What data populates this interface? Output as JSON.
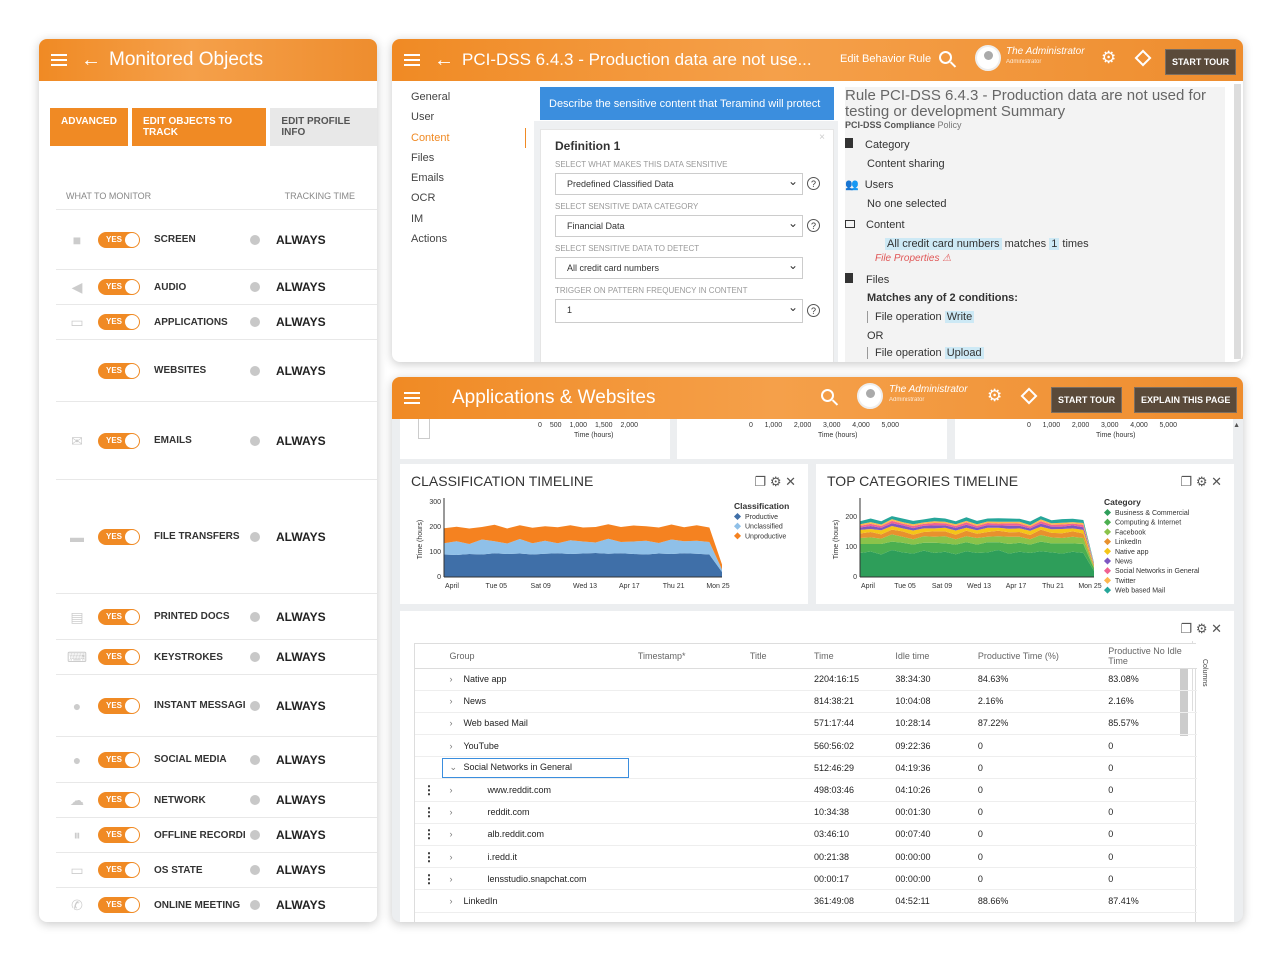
{
  "monitored": {
    "title": "Monitored Objects",
    "buttons": {
      "advanced": "ADVANCED",
      "edit_objects": "EDIT OBJECTS TO TRACK",
      "edit_profile": "EDIT PROFILE INFO"
    },
    "col_what": "WHAT TO MONITOR",
    "col_time": "TRACKING TIME",
    "toggle_label": "YES",
    "items": [
      {
        "name": "SCREEN",
        "time": "ALWAYS",
        "icon": "camera-icon"
      },
      {
        "name": "AUDIO",
        "time": "ALWAYS",
        "icon": "speaker-icon"
      },
      {
        "name": "APPLICATIONS",
        "time": "ALWAYS",
        "icon": "window-icon"
      },
      {
        "name": "WEBSITES",
        "time": "ALWAYS",
        "icon": "code-icon"
      },
      {
        "name": "EMAILS",
        "time": "ALWAYS",
        "icon": "envelope-icon"
      },
      {
        "name": "FILE TRANSFERS",
        "time": "ALWAYS",
        "icon": "drive-icon"
      },
      {
        "name": "PRINTED DOCS",
        "time": "ALWAYS",
        "icon": "printer-icon"
      },
      {
        "name": "KEYSTROKES",
        "time": "ALWAYS",
        "icon": "keyboard-icon"
      },
      {
        "name": "INSTANT MESSAGI",
        "time": "ALWAYS",
        "icon": "chat-bubble-icon"
      },
      {
        "name": "SOCIAL MEDIA",
        "time": "ALWAYS",
        "icon": "people-icon"
      },
      {
        "name": "NETWORK",
        "time": "ALWAYS",
        "icon": "cloud-icon"
      },
      {
        "name": "OFFLINE RECORDI",
        "time": "ALWAYS",
        "icon": "pause-icon"
      },
      {
        "name": "OS STATE",
        "time": "ALWAYS",
        "icon": "monitor-icon"
      },
      {
        "name": "ONLINE MEETING",
        "time": "ALWAYS",
        "icon": "phone-icon"
      }
    ]
  },
  "rule": {
    "title": "PCI-DSS 6.4.3 - Production data are not use...",
    "edit_behavior": "Edit Behavior Rule",
    "admin_name": "The Administrator",
    "admin_role": "Administrator",
    "start_tour": "START TOUR",
    "nav": [
      "General",
      "User",
      "Content",
      "Files",
      "Emails",
      "OCR",
      "IM",
      "Actions"
    ],
    "banner": "Describe the sensitive content that Teramind will protect",
    "definition_title": "Definition 1",
    "fields": [
      {
        "label": "SELECT WHAT MAKES THIS DATA SENSITIVE",
        "value": "Predefined Classified Data"
      },
      {
        "label": "SELECT SENSITIVE DATA CATEGORY",
        "value": "Financial Data"
      },
      {
        "label": "SELECT SENSITIVE DATA TO DETECT",
        "value": "All credit card numbers"
      },
      {
        "label": "TRIGGER ON PATTERN FREQUENCY IN CONTENT",
        "value": "1"
      }
    ],
    "summary_title": "Rule PCI-DSS 6.4.3 - Production data are not used for testing or development Summary",
    "summary_policy_name": "PCI-DSS Compliance",
    "summary_policy_word": "Policy",
    "category_label": "Category",
    "category_value": "Content sharing",
    "users_label": "Users",
    "users_value": "No one selected",
    "content_label": "Content",
    "content_match": "All credit card numbers",
    "content_matches_word": "matches",
    "content_count": "1",
    "content_times": "times",
    "file_props": "File Properties",
    "files_label": "Files",
    "files_cond": "Matches any of 2 conditions:",
    "file_op1": "File operation",
    "file_op1_val": "Write",
    "or_word": "OR",
    "file_op2": "File operation",
    "file_op2_val": "Upload"
  },
  "apps": {
    "title": "Applications & Websites",
    "admin_name": "The Administrator",
    "admin_role": "Administrator",
    "start_tour": "START TOUR",
    "explain": "EXPLAIN THIS PAGE",
    "strip1_ticks": [
      "0",
      "500",
      "1,000",
      "1,500",
      "2,000"
    ],
    "strip2_ticks": [
      "0",
      "1,000",
      "2,000",
      "3,000",
      "4,000",
      "5,000"
    ],
    "strip3_ticks": [
      "0",
      "1,000",
      "2,000",
      "3,000",
      "4,000",
      "5,000"
    ],
    "strip_axis": "Time (hours)",
    "class_title": "CLASSIFICATION TIMELINE",
    "top_title": "TOP CATEGORIES TIMELINE",
    "grid_headers": [
      "Group",
      "Timestamp*",
      "Title",
      "Time",
      "Idle time",
      "Productive Time (%)",
      "Productive No Idle Time"
    ],
    "grid_rows": [
      {
        "dots": "",
        "indent": 0,
        "arrow": "›",
        "group": "Native app",
        "time": "2204:16:15",
        "idle": "38:34:30",
        "prod": "84.63%",
        "noidle": "83.08%"
      },
      {
        "dots": "",
        "indent": 0,
        "arrow": "›",
        "group": "News",
        "time": "814:38:21",
        "idle": "10:04:08",
        "prod": "2.16%",
        "noidle": "2.16%"
      },
      {
        "dots": "",
        "indent": 0,
        "arrow": "›",
        "group": "Web based Mail",
        "time": "571:17:44",
        "idle": "10:28:14",
        "prod": "87.22%",
        "noidle": "85.57%"
      },
      {
        "dots": "",
        "indent": 0,
        "arrow": "›",
        "group": "YouTube",
        "time": "560:56:02",
        "idle": "09:22:36",
        "prod": "0",
        "noidle": "0"
      },
      {
        "dots": "",
        "indent": 0,
        "arrow": "⌄",
        "group": "Social Networks in General",
        "time": "512:46:29",
        "idle": "04:19:36",
        "prod": "0",
        "noidle": "0"
      },
      {
        "dots": "⋮",
        "indent": 1,
        "arrow": "›",
        "group": "www.reddit.com",
        "time": "498:03:46",
        "idle": "04:10:26",
        "prod": "0",
        "noidle": "0"
      },
      {
        "dots": "⋮",
        "indent": 1,
        "arrow": "›",
        "group": "reddit.com",
        "time": "10:34:38",
        "idle": "00:01:30",
        "prod": "0",
        "noidle": "0"
      },
      {
        "dots": "⋮",
        "indent": 1,
        "arrow": "›",
        "group": "alb.reddit.com",
        "time": "03:46:10",
        "idle": "00:07:40",
        "prod": "0",
        "noidle": "0"
      },
      {
        "dots": "⋮",
        "indent": 1,
        "arrow": "›",
        "group": "i.redd.it",
        "time": "00:21:38",
        "idle": "00:00:00",
        "prod": "0",
        "noidle": "0"
      },
      {
        "dots": "⋮",
        "indent": 1,
        "arrow": "›",
        "group": "lensstudio.snapchat.com",
        "time": "00:00:17",
        "idle": "00:00:00",
        "prod": "0",
        "noidle": "0"
      },
      {
        "dots": "",
        "indent": 0,
        "arrow": "›",
        "group": "LinkedIn",
        "time": "361:49:08",
        "idle": "04:52:11",
        "prod": "88.66%",
        "noidle": "87.41%"
      }
    ],
    "columns_tab": "Columns"
  },
  "chart_data": [
    {
      "type": "area",
      "title": "CLASSIFICATION TIMELINE",
      "ylabel": "Time (hours)",
      "ylim": [
        0,
        300
      ],
      "yticks": [
        "300",
        "200",
        "100",
        "0"
      ],
      "x_ticks": [
        "April",
        "Tue 05",
        "Sat 09",
        "Wed 13",
        "Apr 17",
        "Thu 21",
        "Mon 25"
      ],
      "legend_title": "Classification",
      "series": [
        {
          "name": "Productive",
          "color": "#3f6fa8",
          "values": [
            90,
            88,
            92,
            90,
            95,
            92,
            94,
            90,
            93,
            95,
            92,
            94,
            96,
            93,
            95,
            92,
            90,
            94,
            92,
            95,
            93,
            90,
            20
          ]
        },
        {
          "name": "Unclassified",
          "color": "#8fc0e8",
          "values": [
            45,
            55,
            40,
            60,
            48,
            42,
            58,
            45,
            52,
            40,
            55,
            48,
            42,
            60,
            45,
            50,
            55,
            42,
            58,
            48,
            52,
            50,
            10
          ]
        },
        {
          "name": "Unproductive",
          "color": "#f58220",
          "values": [
            60,
            58,
            62,
            50,
            66,
            60,
            55,
            62,
            58,
            64,
            60,
            56,
            62,
            58,
            60,
            64,
            58,
            62,
            60,
            56,
            62,
            58,
            20
          ]
        }
      ]
    },
    {
      "type": "area",
      "title": "TOP CATEGORIES TIMELINE",
      "ylabel": "Time (hours)",
      "ylim": [
        0,
        250
      ],
      "yticks": [
        "200",
        "100",
        "0"
      ],
      "x_ticks": [
        "April",
        "Tue 05",
        "Sat 09",
        "Wed 13",
        "Apr 17",
        "Thu 21",
        "Mon 25"
      ],
      "legend_title": "Category",
      "series": [
        {
          "name": "Business & Commercial",
          "color": "#2e9e5a",
          "values": [
            80,
            85,
            75,
            90,
            82,
            78,
            88,
            80,
            84,
            76,
            86,
            80,
            82,
            90,
            78,
            84,
            80,
            86,
            82,
            78,
            84,
            80,
            20
          ]
        },
        {
          "name": "Computing & Internet",
          "color": "#4caf50",
          "values": [
            30,
            25,
            35,
            28,
            32,
            30,
            26,
            34,
            28,
            32,
            30,
            28,
            34,
            26,
            32,
            30,
            28,
            32,
            30,
            34,
            28,
            30,
            8
          ]
        },
        {
          "name": "Facebook",
          "color": "#8bc34a",
          "values": [
            20,
            22,
            18,
            24,
            20,
            18,
            22,
            20,
            24,
            18,
            20,
            22,
            18,
            20,
            24,
            20,
            18,
            22,
            20,
            18,
            22,
            20,
            5
          ]
        },
        {
          "name": "LinkedIn",
          "color": "#e8912d",
          "values": [
            15,
            18,
            14,
            16,
            18,
            15,
            14,
            18,
            16,
            15,
            18,
            14,
            16,
            18,
            15,
            16,
            14,
            18,
            15,
            16,
            18,
            15,
            4
          ]
        },
        {
          "name": "Native app",
          "color": "#f5c518",
          "values": [
            12,
            10,
            14,
            12,
            10,
            14,
            12,
            10,
            12,
            14,
            10,
            12,
            14,
            10,
            12,
            12,
            14,
            10,
            12,
            14,
            10,
            12,
            3
          ]
        },
        {
          "name": "News",
          "color": "#7e57c2",
          "values": [
            8,
            10,
            8,
            9,
            10,
            8,
            9,
            10,
            8,
            9,
            10,
            8,
            9,
            8,
            10,
            9,
            8,
            10,
            9,
            8,
            10,
            9,
            2
          ]
        },
        {
          "name": "Social Networks in General",
          "color": "#f06292",
          "values": [
            6,
            7,
            6,
            8,
            6,
            7,
            6,
            8,
            7,
            6,
            8,
            6,
            7,
            6,
            8,
            7,
            6,
            8,
            6,
            7,
            6,
            8,
            2
          ]
        },
        {
          "name": "Twitter",
          "color": "#ffb74d",
          "values": [
            5,
            6,
            5,
            6,
            5,
            6,
            5,
            6,
            5,
            6,
            5,
            6,
            5,
            6,
            5,
            6,
            5,
            6,
            5,
            6,
            5,
            6,
            1
          ]
        },
        {
          "name": "Web based Mail",
          "color": "#26a69a",
          "values": [
            10,
            12,
            11,
            10,
            12,
            11,
            10,
            12,
            11,
            10,
            12,
            11,
            10,
            12,
            11,
            10,
            12,
            11,
            10,
            12,
            11,
            10,
            3
          ]
        }
      ]
    }
  ]
}
